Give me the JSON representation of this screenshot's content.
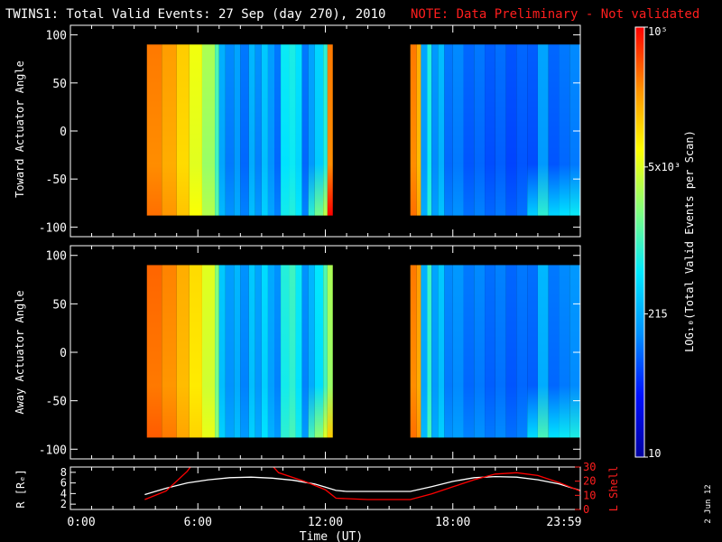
{
  "header": {
    "title": "TWINS1: Total Valid Events: 27 Sep (day 270), 2010",
    "note": "NOTE: Data Preliminary - Not validated",
    "note_color": "#ff2020"
  },
  "footer": {
    "date_stamp": "2 Jun 12"
  },
  "chart_data": [
    {
      "type": "heatmap",
      "name": "toward",
      "ylabel": "Toward Actuator Angle",
      "ylim": [
        -110,
        110
      ],
      "yticks": [
        100,
        50,
        0,
        -50,
        -100
      ],
      "xlim": [
        0,
        24
      ],
      "data_blocks": [
        {
          "x": [
            3.6,
            12.35
          ],
          "y": [
            -88,
            90
          ]
        },
        {
          "x": [
            16.0,
            24.0
          ],
          "y": [
            -88,
            90
          ]
        }
      ],
      "column_levels": [
        [
          3.6,
          0.86
        ],
        [
          4.3,
          0.82
        ],
        [
          5.0,
          0.76
        ],
        [
          5.6,
          0.68
        ],
        [
          6.2,
          0.6
        ],
        [
          6.8,
          0.5
        ],
        [
          7.0,
          0.32
        ],
        [
          7.3,
          0.26
        ],
        [
          7.7,
          0.3
        ],
        [
          8.0,
          0.24
        ],
        [
          8.4,
          0.33
        ],
        [
          8.7,
          0.27
        ],
        [
          9.0,
          0.36
        ],
        [
          9.3,
          0.29
        ],
        [
          9.6,
          0.24
        ],
        [
          9.9,
          0.42
        ],
        [
          10.3,
          0.44
        ],
        [
          10.6,
          0.4
        ],
        [
          10.9,
          0.24
        ],
        [
          11.2,
          0.3
        ],
        [
          11.5,
          0.38
        ],
        [
          11.9,
          0.46
        ],
        [
          12.1,
          0.86
        ],
        [
          16.0,
          0.86
        ],
        [
          16.3,
          0.8
        ],
        [
          16.5,
          0.3
        ],
        [
          16.8,
          0.45
        ],
        [
          17.0,
          0.28
        ],
        [
          17.3,
          0.34
        ],
        [
          17.6,
          0.24
        ],
        [
          18.0,
          0.26
        ],
        [
          18.5,
          0.22
        ],
        [
          19.0,
          0.24
        ],
        [
          19.5,
          0.21
        ],
        [
          20.0,
          0.23
        ],
        [
          20.5,
          0.2
        ],
        [
          21.0,
          0.22
        ],
        [
          21.5,
          0.21
        ],
        [
          22.0,
          0.3
        ],
        [
          22.5,
          0.22
        ],
        [
          23.0,
          0.24
        ],
        [
          23.5,
          0.26
        ]
      ],
      "colorbar": {
        "label": "LOG₁₀(Total Valid Events per Scan)",
        "ticks": [
          {
            "value": 100000,
            "label": "10⁵"
          },
          {
            "value": 5000,
            "label": "5x10³"
          },
          {
            "value": 215,
            "label": "215"
          },
          {
            "value": 10,
            "label": "10"
          }
        ],
        "range": [
          10,
          100000
        ],
        "scale": "log",
        "colors": [
          "#0000a0",
          "#0010ff",
          "#0090ff",
          "#00e8ff",
          "#80ff80",
          "#ffff00",
          "#ff9000",
          "#ff0000"
        ]
      }
    },
    {
      "type": "heatmap",
      "name": "away",
      "ylabel": "Away Actuator Angle",
      "ylim": [
        -110,
        110
      ],
      "yticks": [
        100,
        50,
        0,
        -50,
        -100
      ],
      "xlim": [
        0,
        24
      ],
      "data_blocks": [
        {
          "x": [
            3.6,
            12.35
          ],
          "y": [
            -88,
            90
          ]
        },
        {
          "x": [
            16.0,
            24.0
          ],
          "y": [
            -88,
            90
          ]
        }
      ],
      "column_levels": [
        [
          3.6,
          0.88
        ],
        [
          4.3,
          0.85
        ],
        [
          5.0,
          0.8
        ],
        [
          5.6,
          0.74
        ],
        [
          6.2,
          0.66
        ],
        [
          6.8,
          0.56
        ],
        [
          7.0,
          0.36
        ],
        [
          7.3,
          0.29
        ],
        [
          7.7,
          0.33
        ],
        [
          8.0,
          0.27
        ],
        [
          8.4,
          0.36
        ],
        [
          8.7,
          0.3
        ],
        [
          9.0,
          0.39
        ],
        [
          9.3,
          0.31
        ],
        [
          9.6,
          0.27
        ],
        [
          9.9,
          0.45
        ],
        [
          10.3,
          0.48
        ],
        [
          10.6,
          0.42
        ],
        [
          10.9,
          0.27
        ],
        [
          11.2,
          0.33
        ],
        [
          11.5,
          0.41
        ],
        [
          11.9,
          0.5
        ],
        [
          12.1,
          0.6
        ],
        [
          16.0,
          0.86
        ],
        [
          16.3,
          0.82
        ],
        [
          16.5,
          0.32
        ],
        [
          16.8,
          0.48
        ],
        [
          17.0,
          0.3
        ],
        [
          17.3,
          0.36
        ],
        [
          17.6,
          0.26
        ],
        [
          18.0,
          0.28
        ],
        [
          18.5,
          0.24
        ],
        [
          19.0,
          0.26
        ],
        [
          19.5,
          0.23
        ],
        [
          20.0,
          0.25
        ],
        [
          20.5,
          0.22
        ],
        [
          21.0,
          0.24
        ],
        [
          21.5,
          0.23
        ],
        [
          22.0,
          0.33
        ],
        [
          22.5,
          0.24
        ],
        [
          23.0,
          0.26
        ],
        [
          23.5,
          0.28
        ]
      ]
    },
    {
      "type": "line",
      "name": "orbit",
      "xlabel": "Time (UT)",
      "ylabel_left": "R [Rₑ]",
      "ylabel_right": "L Shell",
      "left_ylim": [
        1,
        9
      ],
      "left_yticks": [
        2,
        4,
        6,
        8
      ],
      "right_ylim": [
        0,
        30
      ],
      "right_yticks": [
        0,
        10,
        20,
        30
      ],
      "xlim": [
        0,
        24
      ],
      "xticks": [
        {
          "value": 0,
          "label": "0:00"
        },
        {
          "value": 6,
          "label": "6:00"
        },
        {
          "value": 12,
          "label": "12:00"
        },
        {
          "value": 18,
          "label": "18:00"
        },
        {
          "value": 23.98,
          "label": "23:59"
        }
      ],
      "series": [
        {
          "axis": "left",
          "color": "#ffffff",
          "x": [
            3.5,
            4.5,
            5.5,
            6.5,
            7.5,
            8.5,
            9.5,
            10.5,
            11.5,
            12.0,
            12.5,
            13.0,
            15.0,
            16.0,
            17.0,
            18.0,
            19.0,
            20.0,
            21.0,
            22.0,
            23.0,
            24.0
          ],
          "y": [
            3.8,
            5.0,
            6.0,
            6.6,
            7.0,
            7.1,
            6.9,
            6.5,
            5.8,
            5.2,
            4.6,
            4.4,
            4.4,
            4.4,
            5.3,
            6.3,
            7.0,
            7.2,
            7.1,
            6.6,
            5.8,
            4.6
          ]
        },
        {
          "axis": "right",
          "color": "#ff0000",
          "x": [
            3.5,
            4.5,
            5.5,
            5.7,
            null,
            9.5,
            9.8,
            11.0,
            12.0,
            12.5,
            14.0,
            16.0,
            17.0,
            18.0,
            19.0,
            20.0,
            21.0,
            22.0,
            23.0,
            24.0
          ],
          "y": [
            7,
            13,
            27,
            31,
            null,
            31,
            26,
            20,
            14,
            8,
            7,
            7,
            11,
            16,
            21,
            25,
            26,
            24,
            19,
            13
          ]
        }
      ]
    }
  ]
}
